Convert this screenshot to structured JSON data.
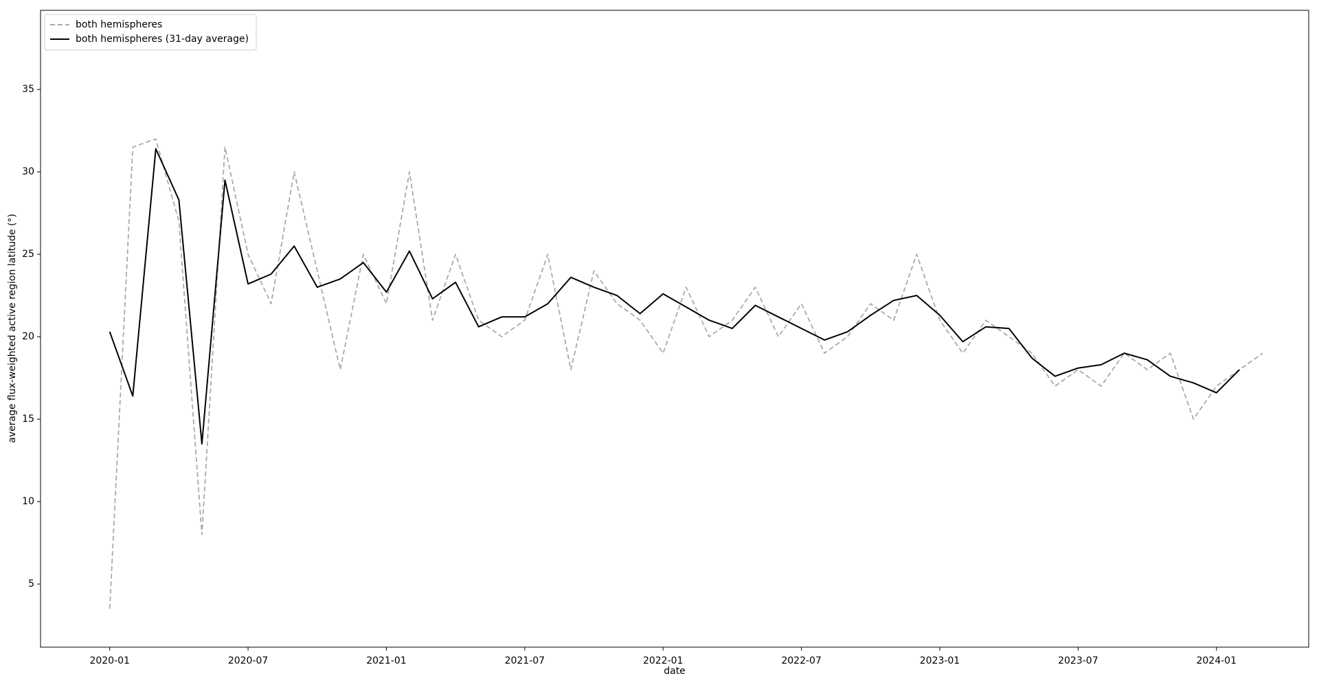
{
  "chart_data": {
    "type": "line",
    "x_label": "date",
    "y_label": "average flux-weighted active region latitude (°)",
    "x": [
      "2020-01",
      "2020-02",
      "2020-03",
      "2020-04",
      "2020-05",
      "2020-06",
      "2020-07",
      "2020-08",
      "2020-09",
      "2020-10",
      "2020-11",
      "2020-12",
      "2021-01",
      "2021-02",
      "2021-03",
      "2021-04",
      "2021-05",
      "2021-06",
      "2021-07",
      "2021-08",
      "2021-09",
      "2021-10",
      "2021-11",
      "2021-12",
      "2022-01",
      "2022-02",
      "2022-03",
      "2022-04",
      "2022-05",
      "2022-06",
      "2022-07",
      "2022-08",
      "2022-09",
      "2022-10",
      "2022-11",
      "2022-12",
      "2023-01",
      "2023-02",
      "2023-03",
      "2023-04",
      "2023-05",
      "2023-06",
      "2023-07",
      "2023-08",
      "2023-09",
      "2023-10",
      "2023-11",
      "2023-12",
      "2024-01",
      "2024-02",
      "2024-03"
    ],
    "series": [
      {
        "name": "both hemispheres",
        "color": "#aaaaaa",
        "linestyle": "dashed",
        "values": [
          3.5,
          31.5,
          32,
          27,
          8,
          31.5,
          25,
          22,
          30,
          24,
          18,
          25,
          22,
          30,
          21,
          25,
          21,
          20,
          21,
          25,
          18,
          24,
          22,
          21,
          19,
          23,
          20,
          21,
          23,
          20,
          22,
          19,
          20,
          22,
          21,
          25,
          21,
          19,
          21,
          20,
          19,
          17,
          18,
          17,
          19,
          18,
          19,
          15,
          17,
          18,
          19
        ]
      },
      {
        "name": "both hemispheres (31-day average)",
        "color": "#000000",
        "linestyle": "solid",
        "values": [
          20.3,
          16.4,
          31.4,
          28.3,
          13.5,
          29.5,
          23.2,
          23.8,
          25.5,
          23,
          23.5,
          24.5,
          22.7,
          25.2,
          22.3,
          23.3,
          20.6,
          21.2,
          21.2,
          22,
          23.6,
          23,
          22.5,
          21.4,
          22.6,
          21.8,
          21,
          20.5,
          21.9,
          21.2,
          20.5,
          19.8,
          20.3,
          21.3,
          22.2,
          22.5,
          21.3,
          19.7,
          20.6,
          20.5,
          18.7,
          17.6,
          18.1,
          18.3,
          19,
          18.6,
          17.6,
          17.2,
          16.6,
          18,
          null
        ]
      }
    ],
    "xlim": [
      "2019-10",
      "2024-05"
    ],
    "xticks": [
      "2020-01",
      "2020-07",
      "2021-01",
      "2021-07",
      "2022-01",
      "2022-07",
      "2023-01",
      "2023-07",
      "2024-01"
    ],
    "ylim": [
      1.17,
      39.8
    ],
    "yticks": [
      5,
      10,
      15,
      20,
      25,
      30,
      35
    ],
    "grid": false,
    "legend": "upper left"
  }
}
